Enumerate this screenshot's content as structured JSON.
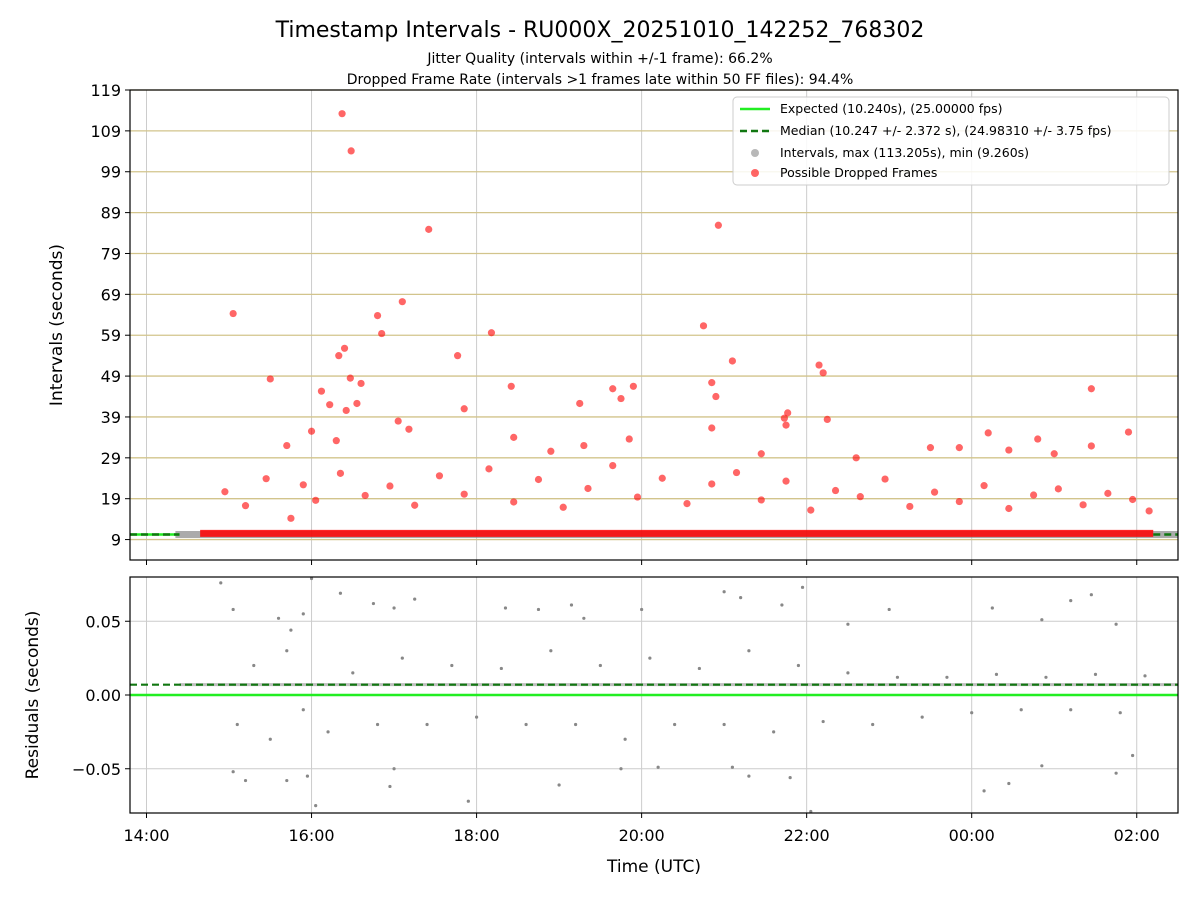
{
  "figure": {
    "title": "Timestamp Intervals - RU000X_20251010_142252_768302",
    "subtitle_1": "Jitter Quality (intervals within +/-1 frame): 66.2%",
    "subtitle_2": "Dropped Frame Rate (intervals >1 frames late within 50 FF files): 94.4%",
    "xlabel": "Time (UTC)"
  },
  "colors": {
    "expected": "#22ee22",
    "median": "#117711",
    "intervals": "#888888",
    "dropped": "#ff0000",
    "hgrid": "#d2c48c",
    "vgrid": "#cccccc"
  },
  "chart_data": [
    {
      "type": "scatter",
      "panel": "top",
      "ylabel": "Intervals (seconds)",
      "ylim": [
        4,
        119
      ],
      "yticks": [
        9,
        19,
        29,
        39,
        49,
        59,
        69,
        79,
        89,
        99,
        109,
        119
      ],
      "ytick_labels": [
        "9",
        "19",
        "29",
        "39",
        "49",
        "59",
        "69",
        "79",
        "89",
        "99",
        "109",
        "119"
      ],
      "xlim_hours": [
        13.8,
        26.5
      ],
      "xticks_hours": [
        14,
        16,
        18,
        20,
        22,
        24,
        26
      ],
      "xtick_labels": [
        "14:00",
        "16:00",
        "18:00",
        "20:00",
        "22:00",
        "00:00",
        "02:00"
      ],
      "legend": {
        "placement": "top-right",
        "entries": [
          "Expected (10.240s), (25.00000 fps)",
          "Median (10.247 +/- 2.372 s), (24.98310 +/- 3.75 fps)",
          "Intervals, max (113.205s), min (9.260s)",
          "Possible Dropped Frames"
        ]
      },
      "lines": {
        "expected": 10.24,
        "median": 10.247
      },
      "baseline_band": {
        "start_hours": 14.35,
        "end_hours": 26.5,
        "value": 10.24
      },
      "dropped_band": {
        "start_hours": 14.65,
        "end_hours": 26.2,
        "value": 10.5
      },
      "series": [
        {
          "name": "Possible Dropped Frames",
          "points": [
            [
              15.05,
              64.3
            ],
            [
              15.5,
              48.3
            ],
            [
              16.37,
              113.2
            ],
            [
              16.48,
              104.1
            ],
            [
              16.4,
              55.8
            ],
            [
              16.33,
              54.0
            ],
            [
              16.47,
              48.5
            ],
            [
              16.6,
              47.2
            ],
            [
              16.55,
              42.3
            ],
            [
              16.22,
              42.0
            ],
            [
              16.12,
              45.3
            ],
            [
              16.42,
              40.6
            ],
            [
              16.8,
              63.8
            ],
            [
              16.85,
              59.4
            ],
            [
              17.1,
              67.2
            ],
            [
              17.42,
              84.9
            ],
            [
              17.77,
              54.0
            ],
            [
              17.85,
              41.0
            ],
            [
              18.18,
              59.6
            ],
            [
              18.42,
              46.5
            ],
            [
              19.65,
              45.9
            ],
            [
              19.75,
              43.5
            ],
            [
              19.9,
              46.5
            ],
            [
              19.25,
              42.3
            ],
            [
              20.75,
              61.3
            ],
            [
              20.85,
              47.4
            ],
            [
              20.9,
              44.0
            ],
            [
              20.93,
              85.9
            ],
            [
              21.1,
              52.7
            ],
            [
              21.77,
              40.0
            ],
            [
              21.73,
              38.7
            ],
            [
              21.75,
              37.0
            ],
            [
              22.15,
              51.7
            ],
            [
              22.2,
              49.8
            ],
            [
              22.25,
              38.4
            ],
            [
              23.5,
              31.5
            ],
            [
              24.2,
              35.1
            ],
            [
              24.45,
              30.9
            ],
            [
              25.45,
              45.9
            ],
            [
              25.9,
              35.3
            ],
            [
              25.45,
              31.9
            ],
            [
              17.05,
              38.0
            ],
            [
              17.18,
              36.0
            ],
            [
              18.45,
              34.0
            ],
            [
              19.3,
              32.0
            ],
            [
              21.45,
              30.0
            ],
            [
              22.6,
              29.0
            ],
            [
              23.85,
              31.5
            ],
            [
              24.8,
              33.6
            ],
            [
              25.0,
              30.0
            ],
            [
              15.7,
              32.0
            ],
            [
              16.0,
              35.5
            ],
            [
              16.3,
              33.2
            ],
            [
              20.85,
              36.3
            ],
            [
              19.85,
              33.6
            ],
            [
              18.9,
              30.6
            ],
            [
              15.9,
              22.4
            ],
            [
              16.05,
              18.6
            ],
            [
              16.35,
              25.2
            ],
            [
              16.65,
              19.8
            ],
            [
              16.95,
              22.1
            ],
            [
              17.25,
              17.4
            ],
            [
              17.55,
              24.6
            ],
            [
              17.85,
              20.1
            ],
            [
              18.15,
              26.3
            ],
            [
              18.45,
              18.2
            ],
            [
              18.75,
              23.7
            ],
            [
              19.05,
              16.9
            ],
            [
              19.35,
              21.5
            ],
            [
              19.65,
              27.1
            ],
            [
              19.95,
              19.4
            ],
            [
              20.25,
              24.0
            ],
            [
              20.55,
              17.8
            ],
            [
              20.85,
              22.6
            ],
            [
              21.15,
              25.4
            ],
            [
              21.45,
              18.7
            ],
            [
              21.75,
              23.3
            ],
            [
              22.05,
              16.2
            ],
            [
              22.35,
              21.0
            ],
            [
              22.65,
              19.5
            ],
            [
              22.95,
              23.8
            ],
            [
              23.25,
              17.1
            ],
            [
              23.55,
              20.6
            ],
            [
              23.85,
              18.3
            ],
            [
              24.15,
              22.2
            ],
            [
              24.45,
              16.6
            ],
            [
              24.75,
              19.9
            ],
            [
              25.05,
              21.4
            ],
            [
              25.35,
              17.5
            ],
            [
              25.65,
              20.3
            ],
            [
              25.95,
              18.8
            ],
            [
              26.15,
              16.0
            ],
            [
              14.95,
              20.7
            ],
            [
              15.2,
              17.3
            ],
            [
              15.45,
              23.9
            ],
            [
              15.75,
              14.2
            ]
          ]
        }
      ]
    },
    {
      "type": "scatter",
      "panel": "bottom",
      "ylabel": "Residuals (seconds)",
      "ylim": [
        -0.08,
        0.08
      ],
      "yticks": [
        -0.05,
        0.0,
        0.05
      ],
      "ytick_labels": [
        "−0.05",
        "0.00",
        "0.05"
      ],
      "xlim_hours": [
        13.8,
        26.5
      ],
      "xticks_hours": [
        14,
        16,
        18,
        20,
        22,
        24,
        26
      ],
      "xtick_labels": [
        "14:00",
        "16:00",
        "18:00",
        "20:00",
        "22:00",
        "00:00",
        "02:00"
      ],
      "lines": {
        "expected": 0.0,
        "median": 0.007
      },
      "series": [
        {
          "name": "Residuals",
          "points": [
            [
              14.9,
              0.076
            ],
            [
              15.05,
              0.058
            ],
            [
              15.6,
              0.052
            ],
            [
              15.75,
              0.044
            ],
            [
              15.9,
              0.055
            ],
            [
              16.0,
              0.079
            ],
            [
              16.35,
              0.069
            ],
            [
              16.75,
              0.062
            ],
            [
              17.0,
              0.059
            ],
            [
              17.25,
              0.065
            ],
            [
              18.35,
              0.059
            ],
            [
              18.75,
              0.058
            ],
            [
              19.15,
              0.061
            ],
            [
              19.3,
              0.052
            ],
            [
              20.0,
              0.058
            ],
            [
              21.0,
              0.07
            ],
            [
              21.2,
              0.066
            ],
            [
              21.7,
              0.061
            ],
            [
              21.95,
              0.073
            ],
            [
              22.5,
              0.048
            ],
            [
              23.0,
              0.058
            ],
            [
              24.25,
              0.059
            ],
            [
              24.85,
              0.051
            ],
            [
              25.2,
              0.064
            ],
            [
              25.45,
              0.068
            ],
            [
              25.75,
              0.048
            ],
            [
              15.05,
              -0.052
            ],
            [
              15.2,
              -0.058
            ],
            [
              15.7,
              -0.058
            ],
            [
              15.95,
              -0.055
            ],
            [
              16.05,
              -0.075
            ],
            [
              16.95,
              -0.062
            ],
            [
              17.0,
              -0.05
            ],
            [
              17.9,
              -0.072
            ],
            [
              19.0,
              -0.061
            ],
            [
              19.75,
              -0.05
            ],
            [
              20.2,
              -0.049
            ],
            [
              21.1,
              -0.049
            ],
            [
              21.3,
              -0.055
            ],
            [
              21.8,
              -0.056
            ],
            [
              22.05,
              -0.079
            ],
            [
              24.15,
              -0.065
            ],
            [
              24.45,
              -0.06
            ],
            [
              24.85,
              -0.048
            ],
            [
              25.75,
              -0.053
            ],
            [
              25.95,
              -0.041
            ],
            [
              15.1,
              -0.02
            ],
            [
              15.3,
              0.02
            ],
            [
              15.5,
              -0.03
            ],
            [
              15.7,
              0.03
            ],
            [
              15.9,
              -0.01
            ],
            [
              16.2,
              -0.025
            ],
            [
              16.5,
              0.015
            ],
            [
              16.8,
              -0.02
            ],
            [
              17.1,
              0.025
            ],
            [
              17.4,
              -0.02
            ],
            [
              17.7,
              0.02
            ],
            [
              18.0,
              -0.015
            ],
            [
              18.3,
              0.018
            ],
            [
              18.6,
              -0.02
            ],
            [
              18.9,
              0.03
            ],
            [
              19.2,
              -0.02
            ],
            [
              19.5,
              0.02
            ],
            [
              19.8,
              -0.03
            ],
            [
              20.1,
              0.025
            ],
            [
              20.4,
              -0.02
            ],
            [
              20.7,
              0.018
            ],
            [
              21.0,
              -0.02
            ],
            [
              21.3,
              0.03
            ],
            [
              21.6,
              -0.025
            ],
            [
              21.9,
              0.02
            ],
            [
              22.2,
              -0.018
            ],
            [
              22.5,
              0.015
            ],
            [
              22.8,
              -0.02
            ],
            [
              23.1,
              0.012
            ],
            [
              23.4,
              -0.015
            ],
            [
              23.7,
              0.012
            ],
            [
              24.0,
              -0.012
            ],
            [
              24.3,
              0.014
            ],
            [
              24.6,
              -0.01
            ],
            [
              24.9,
              0.012
            ],
            [
              25.2,
              -0.01
            ],
            [
              25.5,
              0.014
            ],
            [
              25.8,
              -0.012
            ],
            [
              26.1,
              0.013
            ]
          ]
        }
      ]
    }
  ]
}
